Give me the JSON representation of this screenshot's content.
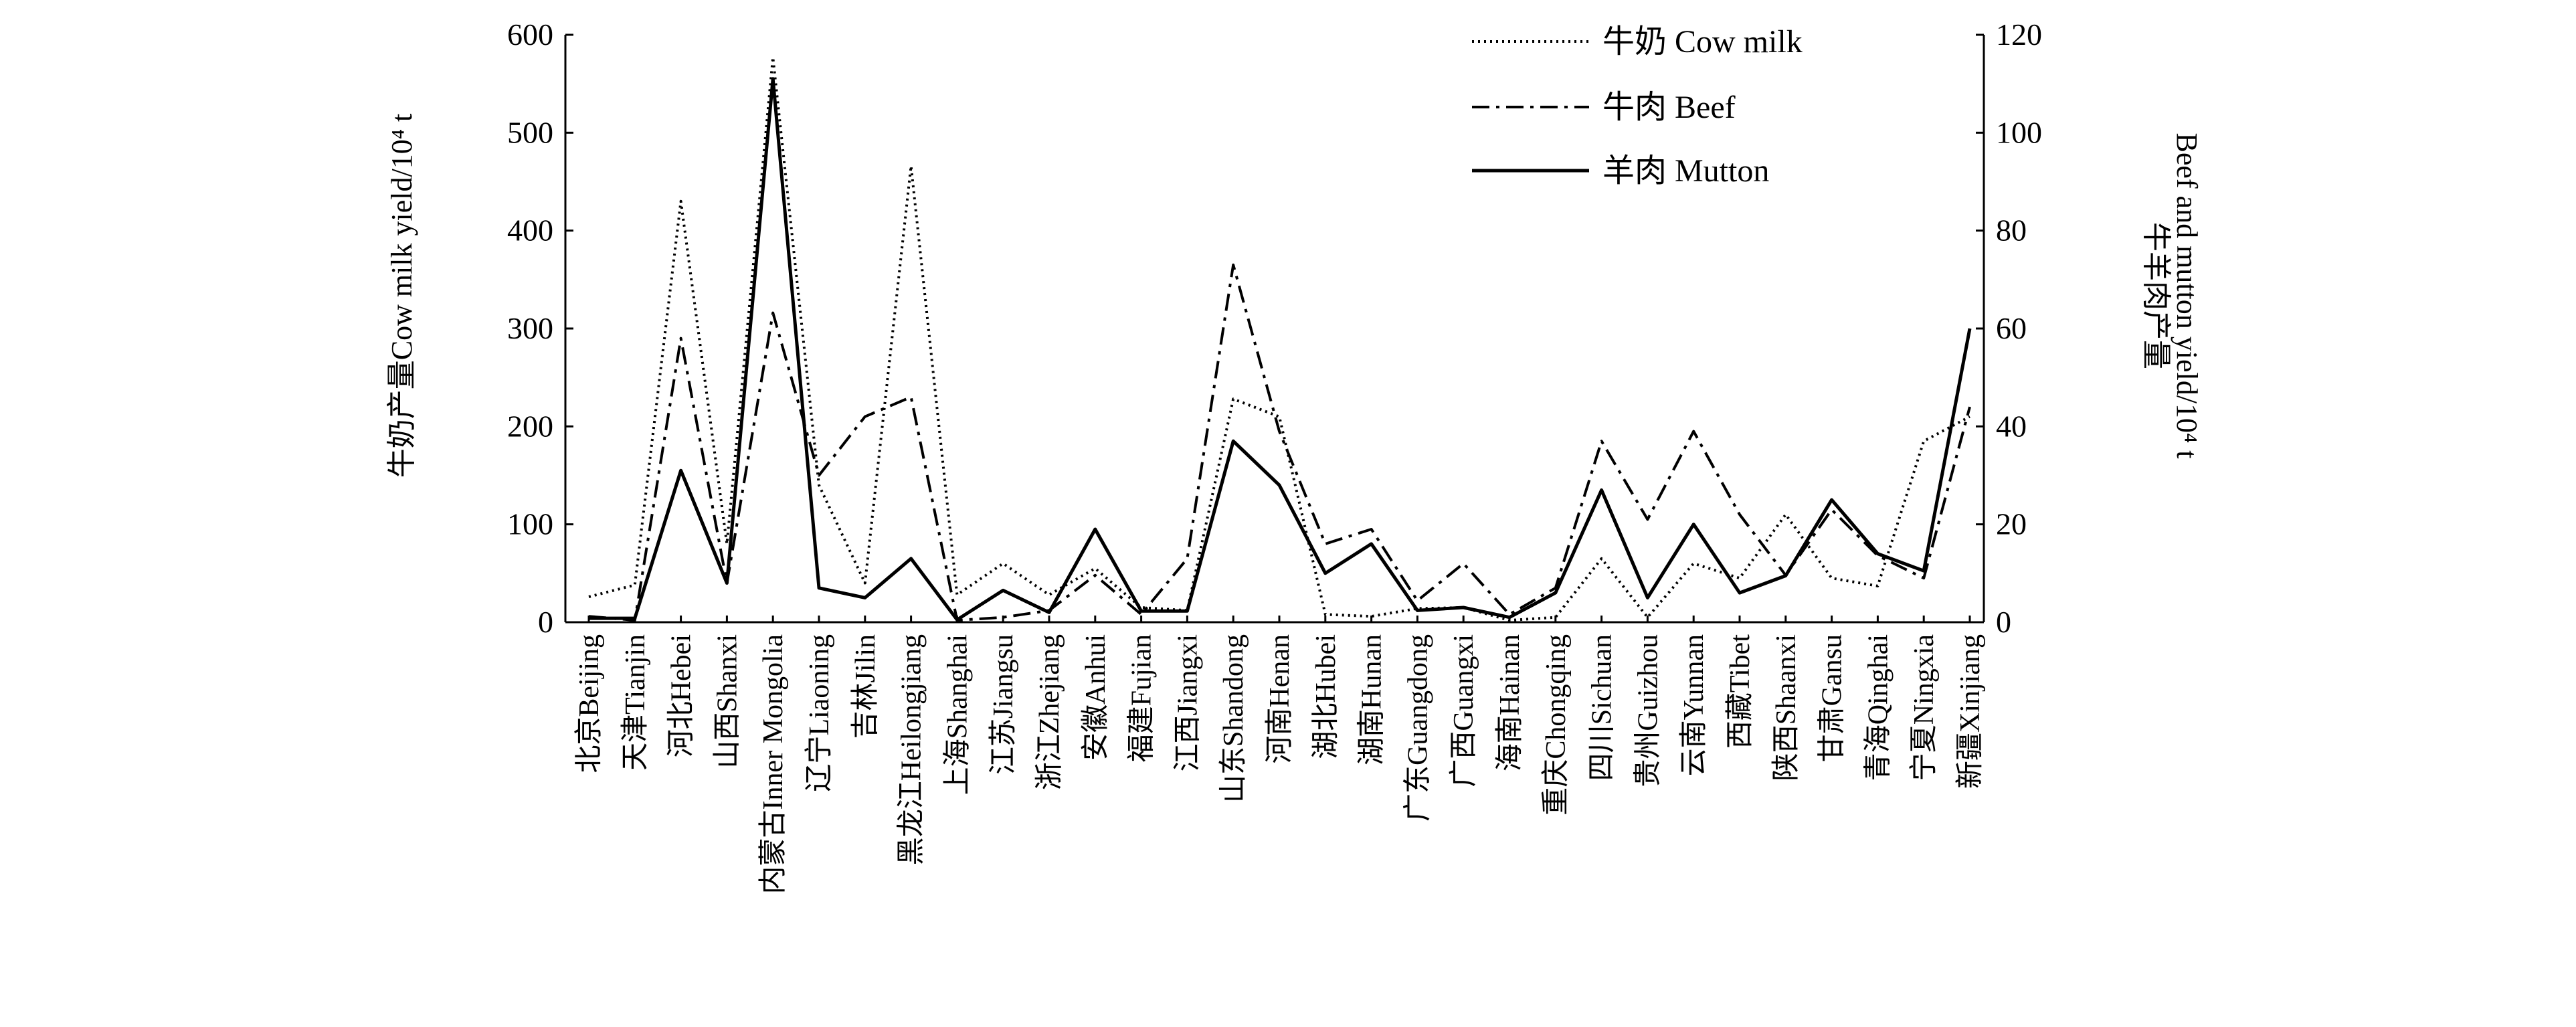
{
  "chart_data": {
    "type": "line",
    "categories": [
      "北京Beijing",
      "天津Tianjin",
      "河北Hebei",
      "山西Shanxi",
      "内蒙古Inner Mongolia",
      "辽宁Liaoning",
      "吉林Jilin",
      "黑龙江Heilongjiang",
      "上海Shanghai",
      "江苏Jiangsu",
      "浙江Zhejiang",
      "安徽Anhui",
      "福建Fujian",
      "江西Jiangxi",
      "山东Shandong",
      "河南Henan",
      "湖北Hubei",
      "湖南Hunan",
      "广东Guangdong",
      "广西Guangxi",
      "海南Hainan",
      "重庆Chongqing",
      "四川Sichuan",
      "贵州Guizhou",
      "云南Yunnan",
      "西藏Tibet",
      "陕西Shaanxi",
      "甘肃Gansu",
      "青海Qinghai",
      "宁夏Ningxia",
      "新疆Xinjiang"
    ],
    "series": [
      {
        "name": "牛奶 Cow milk",
        "axis": "left",
        "style": "dotted",
        "values": [
          26,
          38,
          430,
          80,
          577,
          140,
          40,
          466,
          28,
          60,
          28,
          55,
          15,
          12,
          228,
          210,
          8,
          6,
          14,
          15,
          2,
          5,
          65,
          5,
          60,
          45,
          110,
          45,
          37,
          185,
          210
        ]
      },
      {
        "name": "牛肉 Beef",
        "axis": "left",
        "style": "dashdot",
        "values": [
          6,
          2,
          290,
          40,
          316,
          150,
          210,
          230,
          2,
          5,
          12,
          48,
          8,
          65,
          365,
          195,
          80,
          95,
          22,
          60,
          8,
          35,
          185,
          105,
          195,
          110,
          48,
          115,
          68,
          45,
          220
        ]
      },
      {
        "name": "羊肉 Mutton",
        "axis": "right",
        "style": "solid",
        "values": [
          0.8,
          0.8,
          31,
          8,
          111,
          7,
          5,
          13,
          0.5,
          6.5,
          2,
          19,
          2.3,
          2.3,
          37,
          28,
          10,
          16,
          2.4,
          3,
          1,
          6,
          27,
          5,
          20,
          6,
          9.5,
          25,
          14,
          10.5,
          60
        ]
      }
    ],
    "ylabel_left": "牛奶产量Cow milk yield/10⁴ t",
    "ylabel_right_cn": "牛羊肉产量",
    "ylabel_right_en": "Beef and mutton yield/10⁴ t",
    "ylim_left": [
      0,
      600
    ],
    "ylim_right": [
      0,
      120
    ],
    "yticks_left": [
      0,
      100,
      200,
      300,
      400,
      500,
      600
    ],
    "yticks_right": [
      0,
      20,
      40,
      60,
      80,
      100,
      120
    ],
    "legend_position": "top-right",
    "grid": false
  }
}
